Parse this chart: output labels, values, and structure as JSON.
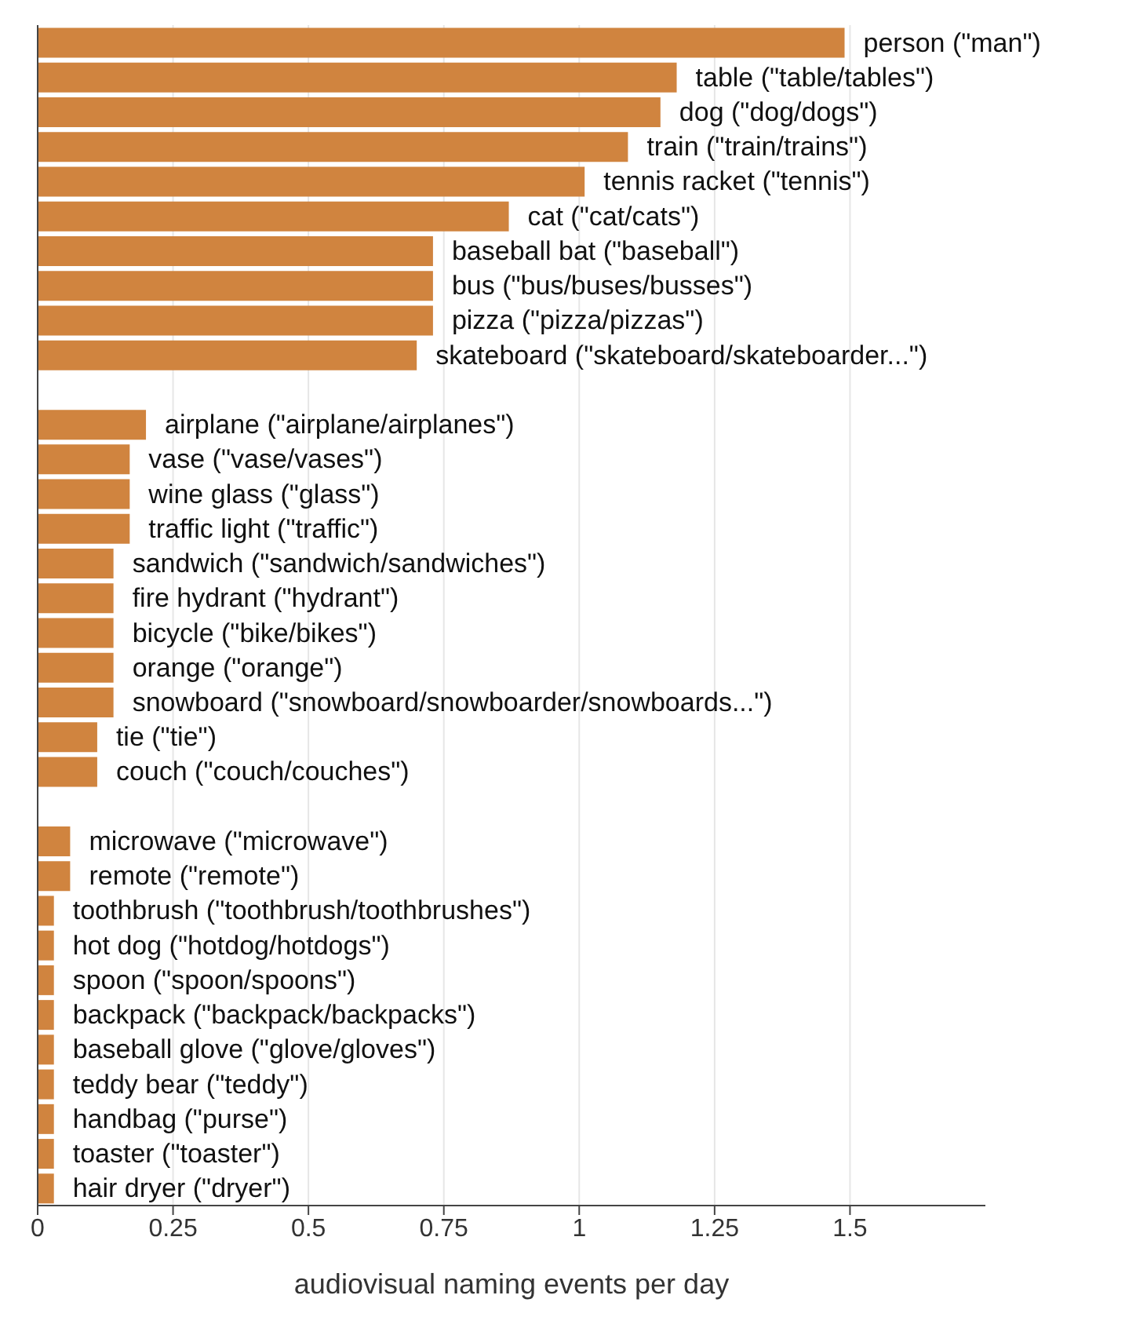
{
  "chart_data": {
    "type": "bar",
    "orientation": "horizontal",
    "xlabel": "audiovisual naming events per day",
    "categories": [
      "person (\"man\")",
      "table (\"table/tables\")",
      "dog (\"dog/dogs\")",
      "train (\"train/trains\")",
      "tennis racket (\"tennis\")",
      "cat (\"cat/cats\")",
      "baseball bat (\"baseball\")",
      "bus (\"bus/buses/busses\")",
      "pizza (\"pizza/pizzas\")",
      "skateboard (\"skateboard/skateboarder...\")",
      null,
      "airplane (\"airplane/airplanes\")",
      "vase (\"vase/vases\")",
      "wine glass (\"glass\")",
      "traffic light (\"traffic\")",
      "sandwich (\"sandwich/sandwiches\")",
      "fire hydrant (\"hydrant\")",
      "bicycle (\"bike/bikes\")",
      "orange (\"orange\")",
      "snowboard (\"snowboard/snowboarder/snowboards...\")",
      "tie (\"tie\")",
      "couch (\"couch/couches\")",
      null,
      "microwave (\"microwave\")",
      "remote (\"remote\")",
      "toothbrush (\"toothbrush/toothbrushes\")",
      "hot dog (\"hotdog/hotdogs\")",
      "spoon (\"spoon/spoons\")",
      "backpack (\"backpack/backpacks\")",
      "baseball glove (\"glove/gloves\")",
      "teddy bear (\"teddy\")",
      "handbag (\"purse\")",
      "toaster (\"toaster\")",
      "hair dryer (\"dryer\")"
    ],
    "values": [
      1.49,
      1.18,
      1.15,
      1.09,
      1.01,
      0.87,
      0.73,
      0.73,
      0.73,
      0.7,
      null,
      0.2,
      0.17,
      0.17,
      0.17,
      0.14,
      0.14,
      0.14,
      0.14,
      0.14,
      0.11,
      0.11,
      null,
      0.06,
      0.06,
      0.03,
      0.03,
      0.03,
      0.03,
      0.03,
      0.03,
      0.03,
      0.03,
      0.03
    ],
    "color": "#d0843f",
    "xlim": [
      0,
      1.75
    ],
    "xticks": [
      0,
      0.25,
      0.5,
      0.75,
      1,
      1.25,
      1.5
    ],
    "grid": "x"
  }
}
